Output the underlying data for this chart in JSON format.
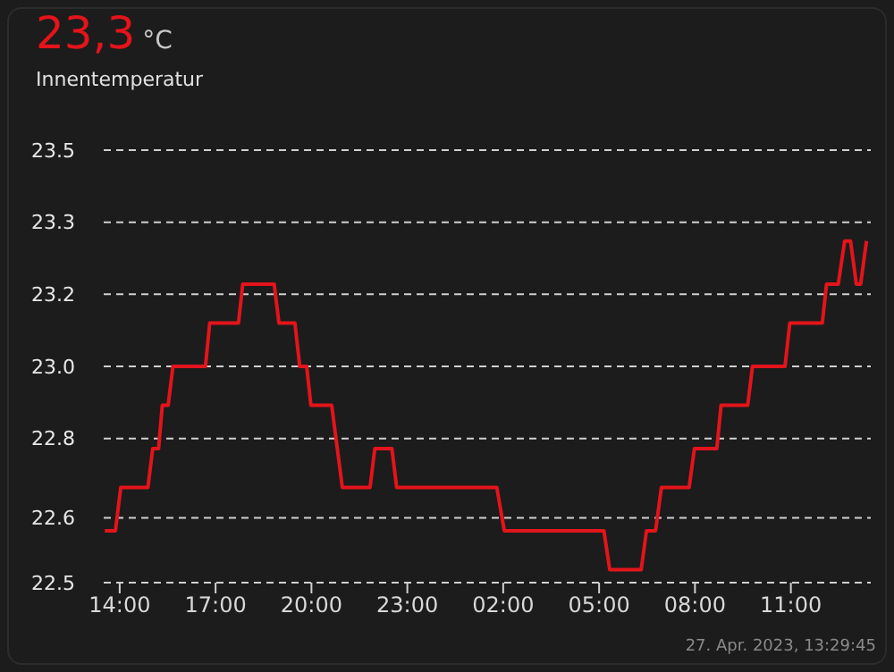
{
  "chart_data": {
    "type": "line",
    "title": "23,3 °C",
    "subtitle": "Innentemperatur",
    "annotations": [
      "27. Apr. 2023, 13:29:45"
    ],
    "x": [
      "2023-04-26T13:32",
      "2023-04-26T13:52",
      "2023-04-26T14:02",
      "2023-04-26T14:53",
      "2023-04-26T15:02",
      "2023-04-26T15:13",
      "2023-04-26T15:20",
      "2023-04-26T15:31",
      "2023-04-26T15:40",
      "2023-04-26T16:41",
      "2023-04-26T16:49",
      "2023-04-26T17:43",
      "2023-04-26T17:51",
      "2023-04-26T18:50",
      "2023-04-26T18:59",
      "2023-04-26T19:29",
      "2023-04-26T19:38",
      "2023-04-26T19:51",
      "2023-04-26T19:59",
      "2023-04-26T20:38",
      "2023-04-26T20:58",
      "2023-04-26T21:50",
      "2023-04-26T21:59",
      "2023-04-26T22:31",
      "2023-04-26T22:40",
      "2023-04-27T01:48",
      "2023-04-27T02:02",
      "2023-04-27T05:09",
      "2023-04-27T05:20",
      "2023-04-27T06:19",
      "2023-04-27T06:29",
      "2023-04-27T06:46",
      "2023-04-27T06:57",
      "2023-04-27T07:49",
      "2023-04-27T07:59",
      "2023-04-27T08:41",
      "2023-04-27T08:49",
      "2023-04-27T09:39",
      "2023-04-27T09:48",
      "2023-04-27T10:49",
      "2023-04-27T10:58",
      "2023-04-27T11:59",
      "2023-04-27T12:07",
      "2023-04-27T12:29",
      "2023-04-27T12:41",
      "2023-04-27T12:52",
      "2023-04-27T13:03",
      "2023-04-27T13:11",
      "2023-04-27T13:22"
    ],
    "series": [
      {
        "color": "#e3141b",
        "values": [
          22.62,
          22.62,
          22.72,
          22.72,
          22.81,
          22.81,
          22.91,
          22.91,
          23.0,
          23.0,
          23.1,
          23.1,
          23.19,
          23.19,
          23.1,
          23.1,
          23.0,
          23.0,
          22.91,
          22.91,
          22.72,
          22.72,
          22.81,
          22.81,
          22.72,
          22.72,
          22.62,
          22.62,
          22.53,
          22.53,
          22.62,
          22.62,
          22.72,
          22.72,
          22.81,
          22.81,
          22.91,
          22.91,
          23.0,
          23.0,
          23.1,
          23.1,
          23.19,
          23.19,
          23.29,
          23.29,
          23.19,
          23.19,
          23.29
        ]
      }
    ],
    "xlim": [
      "2023-04-26T13:30",
      "2023-04-27T13:30"
    ],
    "xticks": [
      {
        "value": "2023-04-26T14:00",
        "label": "14:00"
      },
      {
        "value": "2023-04-26T17:00",
        "label": "17:00"
      },
      {
        "value": "2023-04-26T20:00",
        "label": "20:00"
      },
      {
        "value": "2023-04-26T23:00",
        "label": "23:00"
      },
      {
        "value": "2023-04-27T02:00",
        "label": "02:00"
      },
      {
        "value": "2023-04-27T05:00",
        "label": "05:00"
      },
      {
        "value": "2023-04-27T08:00",
        "label": "08:00"
      },
      {
        "value": "2023-04-27T11:00",
        "label": "11:00"
      }
    ],
    "ylim": [
      22.5,
      23.5
    ],
    "yticks": [
      {
        "value": 22.5,
        "label": "22.5"
      },
      {
        "value": 22.65,
        "label": "22.6"
      },
      {
        "value": 22.8333,
        "label": "22.8"
      },
      {
        "value": 23,
        "label": "23.0"
      },
      {
        "value": 23.1667,
        "label": "23.2"
      },
      {
        "value": 23.3333,
        "label": "23.3"
      },
      {
        "value": 23.5,
        "label": "23.5"
      }
    ],
    "grid": "y",
    "marker": "none",
    "line_style": "solid"
  }
}
